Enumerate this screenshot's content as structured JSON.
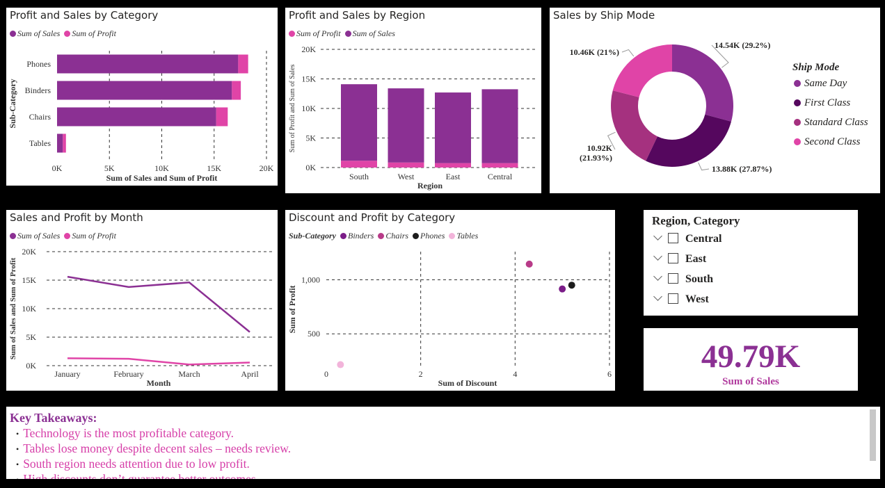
{
  "colors": {
    "sales": "#8B3093",
    "profit": "#E044A7",
    "same_day": "#8B3093",
    "first_class": "#55075E",
    "standard_class": "#A5317F",
    "second_class": "#E044A7",
    "binders": "#7B1D88",
    "chairs": "#B83B88",
    "phones": "#1C1C1C",
    "tables": "#F2B4DA"
  },
  "panels": {
    "category": {
      "title": "Profit and Sales by Category",
      "legend": [
        {
          "label": "Sum of Sales",
          "color": "#8B3093"
        },
        {
          "label": "Sum of Profit",
          "color": "#E044A7"
        }
      ]
    },
    "region": {
      "title": "Profit and Sales by Region",
      "legend": [
        {
          "label": "Sum of Profit",
          "color": "#E044A7"
        },
        {
          "label": "Sum of Sales",
          "color": "#8B3093"
        }
      ]
    },
    "shipmode": {
      "title": "Sales by Ship Mode",
      "legend_title": "Ship Mode",
      "legend": [
        {
          "label": "Same Day",
          "color": "#8B3093"
        },
        {
          "label": "First Class",
          "color": "#55075E"
        },
        {
          "label": "Standard Class",
          "color": "#A5317F"
        },
        {
          "label": "Second Class",
          "color": "#E044A7"
        }
      ]
    },
    "month": {
      "title": "Sales and Profit by Month",
      "legend": [
        {
          "label": "Sum of Sales",
          "color": "#8B3093"
        },
        {
          "label": "Sum of Profit",
          "color": "#E044A7"
        }
      ]
    },
    "discount": {
      "title": "Discount and Profit by Category",
      "legend_title": "Sub-Category",
      "legend": [
        {
          "label": "Binders",
          "color": "#7B1D88"
        },
        {
          "label": "Chairs",
          "color": "#B83B88"
        },
        {
          "label": "Phones",
          "color": "#1C1C1C"
        },
        {
          "label": "Tables",
          "color": "#F2B4DA"
        }
      ]
    }
  },
  "slicer": {
    "title": "Region, Category",
    "items": [
      "Central",
      "East",
      "South",
      "West"
    ]
  },
  "kpi": {
    "value": "49.79K",
    "label": "Sum of Sales"
  },
  "takeaways": {
    "title": "Key Takeaways:",
    "items": [
      "Technology is the most profitable category.",
      "Tables lose money despite decent sales – needs review.",
      "South region needs attention due to low profit.",
      "High discounts don’t guarantee better outcomes."
    ]
  },
  "chart_data": [
    {
      "id": "category",
      "type": "bar",
      "orientation": "horizontal",
      "stacked": true,
      "categories": [
        "Phones",
        "Binders",
        "Chairs",
        "Tables"
      ],
      "series": [
        {
          "name": "Sum of Sales",
          "values": [
            17300,
            16700,
            15200,
            550
          ]
        },
        {
          "name": "Sum of Profit",
          "values": [
            950,
            850,
            1100,
            300
          ]
        }
      ],
      "xlabel": "Sum of Sales and Sum of Profit",
      "ylabel": "Sub-Category",
      "xlim": [
        0,
        20000
      ],
      "xticks": [
        "0K",
        "5K",
        "10K",
        "15K",
        "20K"
      ],
      "grid": true
    },
    {
      "id": "region",
      "type": "bar",
      "stacked": true,
      "categories": [
        "South",
        "West",
        "East",
        "Central"
      ],
      "series": [
        {
          "name": "Sum of Profit",
          "values": [
            1150,
            850,
            750,
            750
          ]
        },
        {
          "name": "Sum of Sales",
          "values": [
            12950,
            12550,
            11950,
            12500
          ]
        }
      ],
      "xlabel": "Region",
      "ylabel": "Sum of Profit and Sum of Sales",
      "ylim": [
        0,
        20000
      ],
      "yticks": [
        "0K",
        "5K",
        "10K",
        "15K",
        "20K"
      ],
      "grid": true
    },
    {
      "id": "shipmode",
      "type": "pie",
      "donut": true,
      "slices": [
        {
          "name": "Same Day",
          "value": 14540,
          "label": "14.54K (29.2%)"
        },
        {
          "name": "First Class",
          "value": 13880,
          "label": "13.88K (27.87%)"
        },
        {
          "name": "Standard Class",
          "value": 10920,
          "label": "10.92K (21.93%)"
        },
        {
          "name": "Second Class",
          "value": 10460,
          "label": "10.46K (21%)"
        }
      ]
    },
    {
      "id": "month",
      "type": "line",
      "categories": [
        "January",
        "February",
        "March",
        "April"
      ],
      "series": [
        {
          "name": "Sum of Sales",
          "values": [
            15600,
            13800,
            14600,
            5900
          ]
        },
        {
          "name": "Sum of Profit",
          "values": [
            1300,
            1200,
            200,
            550
          ]
        }
      ],
      "xlabel": "Month",
      "ylabel": "Sum of Sales and Sum of Profit",
      "ylim": [
        0,
        20000
      ],
      "yticks": [
        "0K",
        "5K",
        "10K",
        "15K",
        "20K"
      ],
      "grid": true
    },
    {
      "id": "discount",
      "type": "scatter",
      "points": [
        {
          "category": "Chairs",
          "x": 4.3,
          "y": 1145
        },
        {
          "category": "Binders",
          "x": 5.0,
          "y": 915
        },
        {
          "category": "Phones",
          "x": 5.2,
          "y": 950
        },
        {
          "category": "Tables",
          "x": 0.3,
          "y": 215
        }
      ],
      "xlabel": "Sum of Discount",
      "ylabel": "Sum of Profit",
      "xlim": [
        0,
        6
      ],
      "ylim": [
        180,
        1260
      ],
      "xticks": [
        "0",
        "2",
        "4",
        "6"
      ],
      "yticks": [
        "500",
        "1,000"
      ],
      "grid": true
    }
  ]
}
